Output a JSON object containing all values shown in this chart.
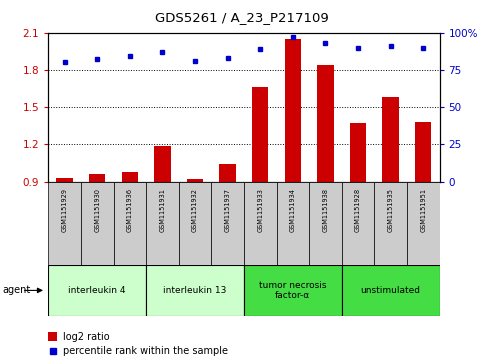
{
  "title": "GDS5261 / A_23_P217109",
  "samples": [
    "GSM1151929",
    "GSM1151930",
    "GSM1151936",
    "GSM1151931",
    "GSM1151932",
    "GSM1151937",
    "GSM1151933",
    "GSM1151934",
    "GSM1151938",
    "GSM1151928",
    "GSM1151935",
    "GSM1151951"
  ],
  "log2_ratio": [
    0.93,
    0.96,
    0.98,
    1.19,
    0.92,
    1.04,
    1.66,
    2.05,
    1.84,
    1.37,
    1.58,
    1.38
  ],
  "percentile_rank": [
    80,
    82,
    84,
    87,
    81,
    83,
    89,
    97,
    93,
    90,
    91,
    90
  ],
  "ylim_left": [
    0.9,
    2.1
  ],
  "ylim_right": [
    0,
    100
  ],
  "yticks_left": [
    0.9,
    1.2,
    1.5,
    1.8,
    2.1
  ],
  "yticks_right": [
    0,
    25,
    50,
    75,
    100
  ],
  "bar_color": "#cc0000",
  "dot_color": "#0000cc",
  "agent_groups": [
    {
      "label": "interleukin 4",
      "start": 0,
      "end": 3,
      "color": "#ccffcc"
    },
    {
      "label": "interleukin 13",
      "start": 3,
      "end": 6,
      "color": "#ccffcc"
    },
    {
      "label": "tumor necrosis\nfactor-α",
      "start": 6,
      "end": 9,
      "color": "#44dd44"
    },
    {
      "label": "unstimulated",
      "start": 9,
      "end": 12,
      "color": "#44dd44"
    }
  ],
  "agent_label": "agent",
  "legend_bar_label": "log2 ratio",
  "legend_dot_label": "percentile rank within the sample",
  "bar_color_legend": "#cc0000",
  "dot_color_legend": "#0000cc",
  "sample_box_color": "#cccccc",
  "tick_color_left": "#cc0000",
  "tick_color_right": "#0000cc"
}
